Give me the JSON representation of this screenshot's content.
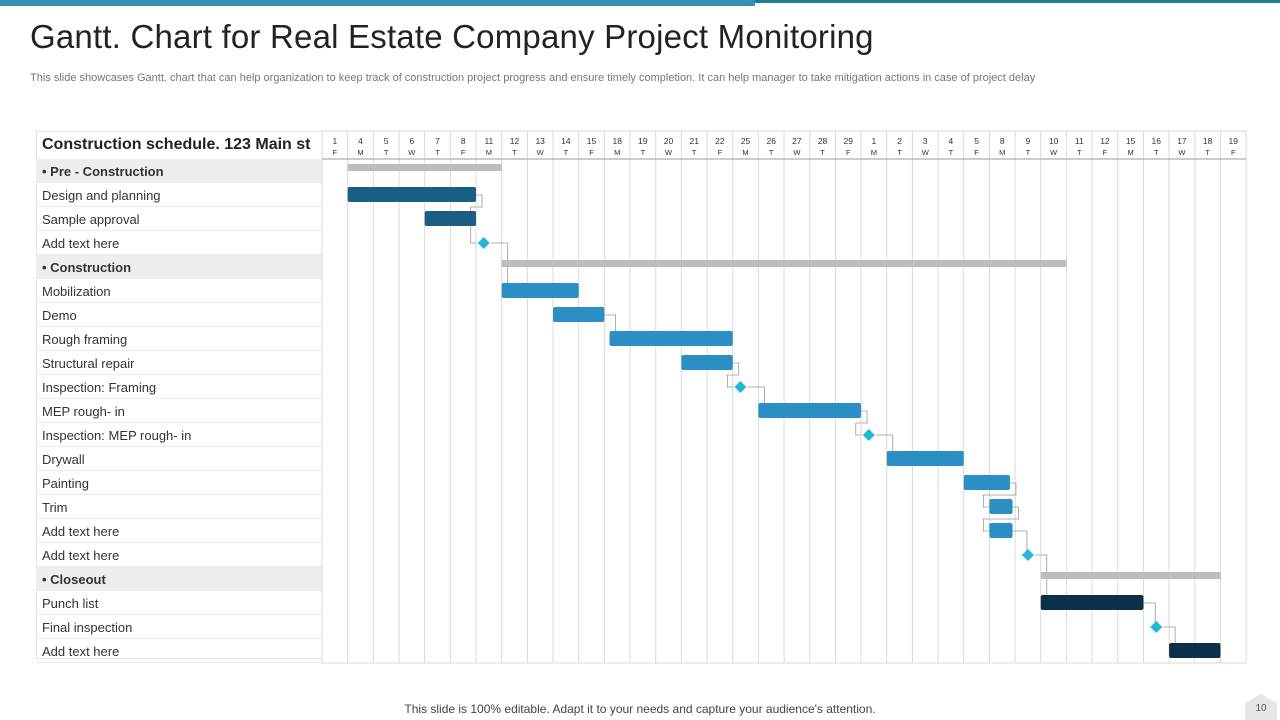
{
  "slide": {
    "title": "Gantt. Chart for Real Estate Company Project Monitoring",
    "subtitle": "This slide showcases Gantt. chart that can help organization to keep track of construction project progress and ensure timely completion. It can help manager to take mitigation actions in case of project delay",
    "footer": "This slide is 100% editable. Adapt it to your needs and capture your audience's attention.",
    "page_number": "10"
  },
  "colors": {
    "summary_bar": "#bdbdbd",
    "task_dark": "#1b5e85",
    "task_light": "#2b8fc6",
    "task_darkest": "#0e2f48",
    "milestone": "#26b6d9",
    "grid": "#d9d9d9",
    "connector": "#9a9a9a"
  },
  "chart_data": {
    "type": "gantt",
    "title": "Construction schedule. 123 Main st",
    "timeline": [
      {
        "day": "1",
        "weekday": "F"
      },
      {
        "day": "4",
        "weekday": "M"
      },
      {
        "day": "5",
        "weekday": "T"
      },
      {
        "day": "6",
        "weekday": "W"
      },
      {
        "day": "7",
        "weekday": "T"
      },
      {
        "day": "8",
        "weekday": "F"
      },
      {
        "day": "11",
        "weekday": "M"
      },
      {
        "day": "12",
        "weekday": "T"
      },
      {
        "day": "13",
        "weekday": "W"
      },
      {
        "day": "14",
        "weekday": "T"
      },
      {
        "day": "15",
        "weekday": "F"
      },
      {
        "day": "18",
        "weekday": "M"
      },
      {
        "day": "19",
        "weekday": "T"
      },
      {
        "day": "20",
        "weekday": "W"
      },
      {
        "day": "21",
        "weekday": "T"
      },
      {
        "day": "22",
        "weekday": "F"
      },
      {
        "day": "25",
        "weekday": "M"
      },
      {
        "day": "26",
        "weekday": "T"
      },
      {
        "day": "27",
        "weekday": "W"
      },
      {
        "day": "28",
        "weekday": "T"
      },
      {
        "day": "29",
        "weekday": "F"
      },
      {
        "day": "1",
        "weekday": "M"
      },
      {
        "day": "2",
        "weekday": "T"
      },
      {
        "day": "3",
        "weekday": "W"
      },
      {
        "day": "4",
        "weekday": "T"
      },
      {
        "day": "5",
        "weekday": "F"
      },
      {
        "day": "8",
        "weekday": "M"
      },
      {
        "day": "9",
        "weekday": "T"
      },
      {
        "day": "10",
        "weekday": "W"
      },
      {
        "day": "11",
        "weekday": "T"
      },
      {
        "day": "12",
        "weekday": "F"
      },
      {
        "day": "15",
        "weekday": "M"
      },
      {
        "day": "16",
        "weekday": "T"
      },
      {
        "day": "17",
        "weekday": "W"
      },
      {
        "day": "18",
        "weekday": "T"
      },
      {
        "day": "19",
        "weekday": "F"
      }
    ],
    "rows": [
      {
        "label": "Pre - Construction",
        "group": true,
        "kind": "summary",
        "start": 1,
        "end": 7
      },
      {
        "label": "Design and planning",
        "group": false,
        "kind": "task",
        "start": 1,
        "end": 6,
        "shade": "task_dark"
      },
      {
        "label": "Sample approval",
        "group": false,
        "kind": "task",
        "start": 4,
        "end": 6,
        "shade": "task_dark"
      },
      {
        "label": "Add text here",
        "group": false,
        "kind": "milestone",
        "at": 6.3
      },
      {
        "label": "Construction",
        "group": true,
        "kind": "summary",
        "start": 7,
        "end": 29
      },
      {
        "label": "Mobilization",
        "group": false,
        "kind": "task",
        "start": 7,
        "end": 10,
        "shade": "task_light"
      },
      {
        "label": "Demo",
        "group": false,
        "kind": "task",
        "start": 9,
        "end": 11,
        "shade": "task_light"
      },
      {
        "label": "Rough framing",
        "group": false,
        "kind": "task",
        "start": 11.2,
        "end": 16,
        "shade": "task_light"
      },
      {
        "label": "Structural repair",
        "group": false,
        "kind": "task",
        "start": 14,
        "end": 16,
        "shade": "task_light"
      },
      {
        "label": "Inspection:  Framing",
        "group": false,
        "kind": "milestone",
        "at": 16.3
      },
      {
        "label": "MEP rough- in",
        "group": false,
        "kind": "task",
        "start": 17,
        "end": 21,
        "shade": "task_light"
      },
      {
        "label": "Inspection: MEP rough- in",
        "group": false,
        "kind": "milestone",
        "at": 21.3
      },
      {
        "label": "Drywall",
        "group": false,
        "kind": "task",
        "start": 22,
        "end": 25,
        "shade": "task_light"
      },
      {
        "label": "Painting",
        "group": false,
        "kind": "task",
        "start": 25,
        "end": 26.8,
        "shade": "task_light"
      },
      {
        "label": "Trim",
        "group": false,
        "kind": "task",
        "start": 26,
        "end": 26.9,
        "shade": "task_light"
      },
      {
        "label": "Add text here",
        "group": false,
        "kind": "task",
        "start": 26,
        "end": 26.9,
        "shade": "task_light"
      },
      {
        "label": "Add text here",
        "group": false,
        "kind": "milestone",
        "at": 27.5
      },
      {
        "label": "Closeout",
        "group": true,
        "kind": "summary",
        "start": 28,
        "end": 35
      },
      {
        "label": "Punch list",
        "group": false,
        "kind": "task",
        "start": 28,
        "end": 32,
        "shade": "task_darkest"
      },
      {
        "label": "Final inspection",
        "group": false,
        "kind": "milestone",
        "at": 32.5
      },
      {
        "label": "Add text here",
        "group": false,
        "kind": "task",
        "start": 33,
        "end": 35,
        "shade": "task_darkest"
      }
    ]
  }
}
